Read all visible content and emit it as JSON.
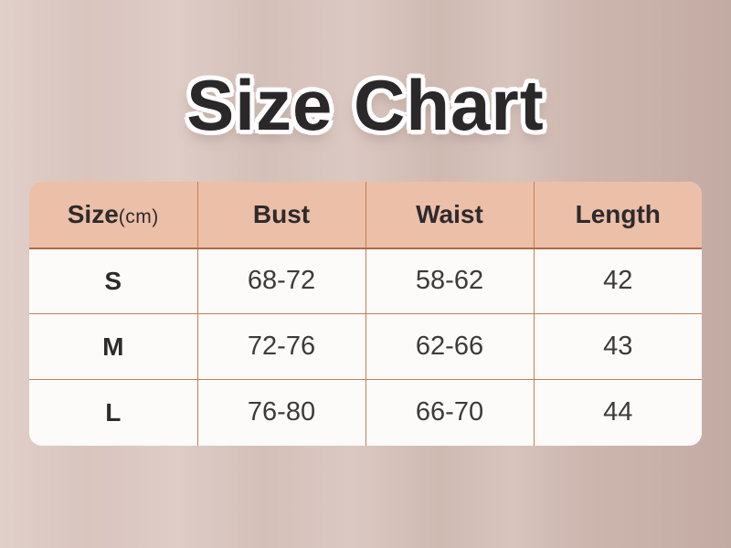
{
  "page": {
    "title": "Size Chart"
  },
  "table": {
    "columns": [
      {
        "label": "Size",
        "suffix": "(cm)"
      },
      {
        "label": "Bust"
      },
      {
        "label": "Waist"
      },
      {
        "label": "Length"
      }
    ],
    "rows": [
      {
        "size": "S",
        "bust": "68-72",
        "waist": "58-62",
        "length": "42"
      },
      {
        "size": "M",
        "bust": "72-76",
        "waist": "62-66",
        "length": "43"
      },
      {
        "size": "L",
        "bust": "76-80",
        "waist": "66-70",
        "length": "44"
      }
    ]
  },
  "chart_data": {
    "type": "table",
    "title": "Size Chart",
    "columns": [
      "Size(cm)",
      "Bust",
      "Waist",
      "Length"
    ],
    "rows": [
      [
        "S",
        "68-72",
        "58-62",
        "42"
      ],
      [
        "M",
        "72-76",
        "62-66",
        "43"
      ],
      [
        "L",
        "76-80",
        "66-70",
        "44"
      ]
    ],
    "unit": "cm"
  },
  "colors": {
    "background_left": "#e1cfc9",
    "background_right": "#c2aba3",
    "header_bg": "#ecbfa8",
    "border": "#c57e51",
    "title_text": "#2b282a",
    "body_bg": "#fdfbfa",
    "body_text": "#3c3a3a"
  }
}
